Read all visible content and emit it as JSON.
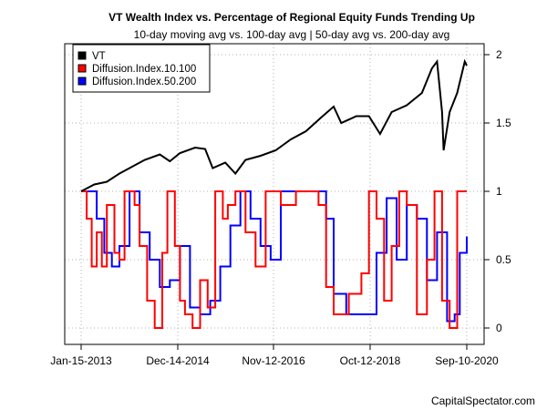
{
  "chart_data": {
    "type": "line",
    "title": "VT Wealth Index vs. Percentage of Regional Equity Funds Trending Up",
    "subtitle": "10-day moving avg vs. 100-day avg | 50-day avg vs. 200-day avg",
    "credit": "CapitalSpectator.com",
    "x_ticks": [
      "Jan-15-2013",
      "Dec-14-2014",
      "Nov-12-2016",
      "Oct-12-2018",
      "Sep-10-2020"
    ],
    "y_ticks": [
      "0",
      "0.5",
      "1",
      "1.5",
      "2"
    ],
    "ylim": [
      0,
      2.05
    ],
    "grid": true,
    "legend_position": "top-left",
    "series": [
      {
        "name": "VT",
        "color": "#000000",
        "x": [
          2013.04,
          2013.3,
          2013.55,
          2013.8,
          2014.0,
          2014.3,
          2014.6,
          2014.8,
          2015.0,
          2015.3,
          2015.5,
          2015.65,
          2015.9,
          2016.1,
          2016.3,
          2016.6,
          2016.9,
          2017.2,
          2017.5,
          2017.8,
          2018.05,
          2018.2,
          2018.5,
          2018.75,
          2018.97,
          2019.2,
          2019.5,
          2019.8,
          2020.0,
          2020.1,
          2020.2,
          2020.23,
          2020.35,
          2020.5,
          2020.65,
          2020.69
        ],
        "y": [
          1.0,
          1.05,
          1.07,
          1.13,
          1.17,
          1.23,
          1.27,
          1.22,
          1.28,
          1.32,
          1.31,
          1.17,
          1.21,
          1.13,
          1.23,
          1.26,
          1.3,
          1.38,
          1.44,
          1.54,
          1.62,
          1.5,
          1.55,
          1.55,
          1.42,
          1.58,
          1.63,
          1.72,
          1.9,
          1.95,
          1.58,
          1.3,
          1.58,
          1.72,
          1.95,
          1.92
        ]
      },
      {
        "name": "Diffusion.Index.10.100",
        "color": "#ff0000",
        "x": [
          2013.04,
          2013.12,
          2013.15,
          2013.25,
          2013.35,
          2013.45,
          2013.55,
          2013.7,
          2013.8,
          2013.9,
          2014.1,
          2014.2,
          2014.35,
          2014.5,
          2014.65,
          2014.75,
          2014.9,
          2015.0,
          2015.1,
          2015.25,
          2015.4,
          2015.55,
          2015.7,
          2015.85,
          2015.95,
          2016.1,
          2016.3,
          2016.5,
          2016.7,
          2017.0,
          2017.3,
          2017.55,
          2017.75,
          2017.9,
          2018.05,
          2018.2,
          2018.35,
          2018.6,
          2018.75,
          2018.9,
          2019.05,
          2019.2,
          2019.35,
          2019.5,
          2019.7,
          2019.9,
          2020.05,
          2020.2,
          2020.35,
          2020.5,
          2020.69
        ],
        "y": [
          1,
          1,
          0.8,
          0.45,
          0.7,
          0.45,
          0.9,
          0.55,
          0.5,
          1,
          0.9,
          0.6,
          0.2,
          0.0,
          0.55,
          1,
          0.6,
          0.2,
          0.1,
          0.0,
          0.35,
          0.15,
          1,
          0.8,
          0.9,
          1,
          0.7,
          0.45,
          1,
          0.9,
          1,
          1,
          0.9,
          0.3,
          0.1,
          0.1,
          0.25,
          0.4,
          1,
          0.8,
          0.2,
          0.6,
          1,
          0.9,
          0.1,
          0.5,
          1,
          0.2,
          0.0,
          1,
          1
        ]
      },
      {
        "name": "Diffusion.Index.50.200",
        "color": "#0000ff",
        "x": [
          2013.04,
          2013.2,
          2013.35,
          2013.5,
          2013.65,
          2013.8,
          2014.0,
          2014.2,
          2014.4,
          2014.6,
          2014.8,
          2015.0,
          2015.2,
          2015.4,
          2015.6,
          2015.8,
          2016.0,
          2016.2,
          2016.4,
          2016.6,
          2016.8,
          2017.0,
          2017.3,
          2017.6,
          2017.9,
          2018.05,
          2018.3,
          2018.5,
          2018.7,
          2018.9,
          2019.1,
          2019.3,
          2019.5,
          2019.7,
          2019.9,
          2020.1,
          2020.3,
          2020.45,
          2020.55,
          2020.69
        ],
        "y": [
          1,
          1,
          0.8,
          0.55,
          0.45,
          0.6,
          1,
          0.7,
          0.5,
          0.3,
          0.35,
          0.6,
          0.15,
          0.1,
          0.2,
          0.45,
          0.75,
          1,
          0.8,
          0.6,
          0.5,
          1,
          1,
          1,
          0.8,
          0.25,
          0.1,
          0.1,
          0.1,
          0.55,
          0.95,
          0.5,
          0.9,
          0.8,
          0.35,
          0.7,
          0.05,
          0.1,
          0.55,
          0.67
        ]
      }
    ]
  }
}
